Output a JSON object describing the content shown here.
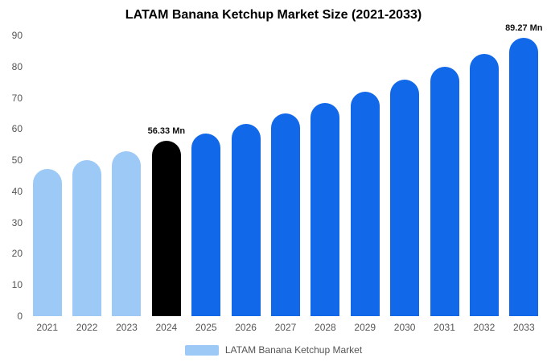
{
  "title": "LATAM Banana Ketchup Market Size (2021-2033)",
  "legend": {
    "label": "LATAM Banana Ketchup Market",
    "swatch_color": "#9cc9f6"
  },
  "colors": {
    "historical": "#9cc9f6",
    "current": "#000000",
    "forecast": "#1168e8",
    "tick_text": "#555555",
    "title_text": "#000000"
  },
  "chart_data": {
    "type": "bar",
    "title": "LATAM Banana Ketchup Market Size (2021-2033)",
    "categories": [
      "2021",
      "2022",
      "2023",
      "2024",
      "2025",
      "2026",
      "2027",
      "2028",
      "2029",
      "2030",
      "2031",
      "2032",
      "2033"
    ],
    "values": [
      47.2,
      50.1,
      52.8,
      56.33,
      58.6,
      61.6,
      64.9,
      68.4,
      72.0,
      75.8,
      79.9,
      84.0,
      89.27
    ],
    "series_roles": [
      "historical",
      "historical",
      "historical",
      "current",
      "forecast",
      "forecast",
      "forecast",
      "forecast",
      "forecast",
      "forecast",
      "forecast",
      "forecast",
      "forecast"
    ],
    "point_labels": {
      "2024": "56.33 Mn",
      "2033": "89.27 Mn"
    },
    "xlabel": "",
    "ylabel": "",
    "ylim": [
      0,
      90
    ],
    "yticks": [
      0,
      10,
      20,
      30,
      40,
      50,
      60,
      70,
      80,
      90
    ],
    "grid": false,
    "legend_position": "bottom",
    "unit": "Mn"
  }
}
